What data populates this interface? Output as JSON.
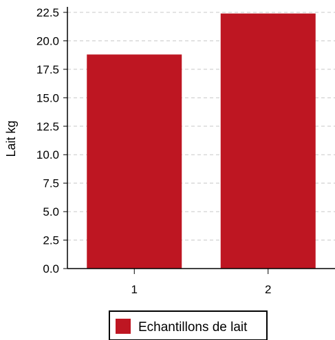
{
  "chart_data": {
    "type": "bar",
    "categories": [
      "1",
      "2"
    ],
    "series": [
      {
        "name": "Echantillons de lait",
        "values": [
          18.8,
          22.4
        ],
        "color": "#be1622"
      }
    ],
    "ylabel": "Lait kg",
    "xlabel": "",
    "ylim": [
      0,
      22.5
    ],
    "yticks": [
      "0.0",
      "2.5",
      "5.0",
      "7.5",
      "10.0",
      "12.5",
      "15.0",
      "17.5",
      "20.0",
      "22.5"
    ],
    "grid": true,
    "legend_position": "bottom-center"
  }
}
